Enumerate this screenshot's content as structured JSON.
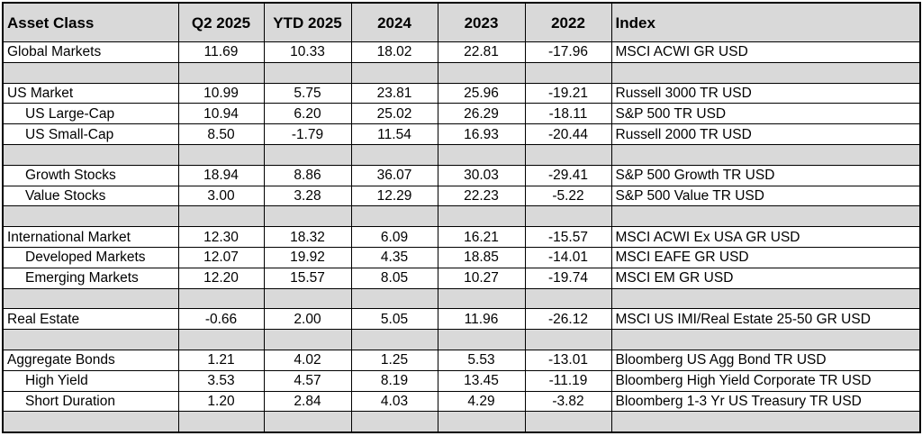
{
  "table": {
    "headers": [
      "Asset Class",
      "Q2 2025",
      "YTD 2025",
      "2024",
      "2023",
      "2022",
      "Index"
    ],
    "rows": [
      {
        "type": "data",
        "indent": false,
        "cells": [
          "Global Markets",
          "11.69",
          "10.33",
          "18.02",
          "22.81",
          "-17.96",
          "MSCI ACWI GR USD"
        ]
      },
      {
        "type": "spacer"
      },
      {
        "type": "data",
        "indent": false,
        "cells": [
          "US Market",
          "10.99",
          "5.75",
          "23.81",
          "25.96",
          "-19.21",
          "Russell 3000 TR USD"
        ]
      },
      {
        "type": "data",
        "indent": true,
        "cells": [
          "US Large-Cap",
          "10.94",
          "6.20",
          "25.02",
          "26.29",
          "-18.11",
          "S&P 500 TR USD"
        ]
      },
      {
        "type": "data",
        "indent": true,
        "cells": [
          "US Small-Cap",
          "8.50",
          "-1.79",
          "11.54",
          "16.93",
          "-20.44",
          "Russell 2000 TR USD"
        ]
      },
      {
        "type": "spacer"
      },
      {
        "type": "data",
        "indent": true,
        "cells": [
          "Growth Stocks",
          "18.94",
          "8.86",
          "36.07",
          "30.03",
          "-29.41",
          "S&P 500 Growth TR USD"
        ]
      },
      {
        "type": "data",
        "indent": true,
        "cells": [
          "Value Stocks",
          "3.00",
          "3.28",
          "12.29",
          "22.23",
          "-5.22",
          "S&P 500 Value TR USD"
        ]
      },
      {
        "type": "spacer"
      },
      {
        "type": "data",
        "indent": false,
        "cells": [
          "International Market",
          "12.30",
          "18.32",
          "6.09",
          "16.21",
          "-15.57",
          "MSCI ACWI Ex USA GR USD"
        ]
      },
      {
        "type": "data",
        "indent": true,
        "cells": [
          "Developed Markets",
          "12.07",
          "19.92",
          "4.35",
          "18.85",
          "-14.01",
          "MSCI EAFE GR USD"
        ]
      },
      {
        "type": "data",
        "indent": true,
        "cells": [
          "Emerging Markets",
          "12.20",
          "15.57",
          "8.05",
          "10.27",
          "-19.74",
          "MSCI EM GR USD"
        ]
      },
      {
        "type": "spacer"
      },
      {
        "type": "data",
        "indent": false,
        "cells": [
          "Real Estate",
          "-0.66",
          "2.00",
          "5.05",
          "11.96",
          "-26.12",
          "MSCI US IMI/Real Estate 25-50 GR USD"
        ]
      },
      {
        "type": "spacer"
      },
      {
        "type": "data",
        "indent": false,
        "cells": [
          "Aggregate Bonds",
          "1.21",
          "4.02",
          "1.25",
          "5.53",
          "-13.01",
          "Bloomberg US Agg Bond TR USD"
        ]
      },
      {
        "type": "data",
        "indent": true,
        "cells": [
          "High Yield",
          "3.53",
          "4.57",
          "8.19",
          "13.45",
          "-11.19",
          "Bloomberg High Yield Corporate TR USD"
        ]
      },
      {
        "type": "data",
        "indent": true,
        "cells": [
          "Short Duration",
          "1.20",
          "2.84",
          "4.03",
          "4.29",
          "-3.82",
          "Bloomberg 1-3 Yr US Treasury TR USD"
        ]
      },
      {
        "type": "spacer"
      }
    ]
  },
  "colors": {
    "header_bg": "#d9d9d9",
    "spacer_bg": "#d9d9d9",
    "border": "#000000"
  }
}
